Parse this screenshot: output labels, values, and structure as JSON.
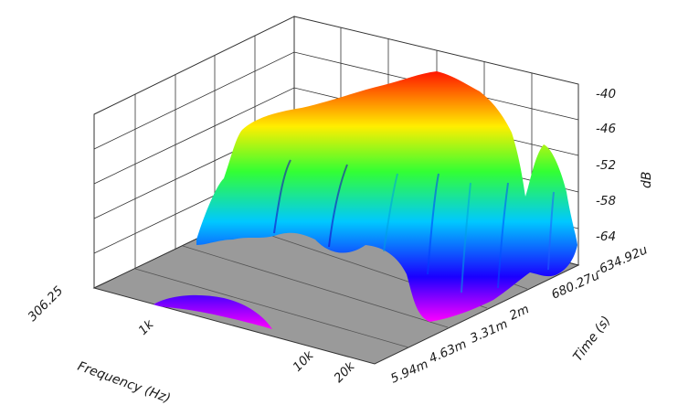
{
  "chart_data": {
    "type": "surface-3d",
    "xlabel": "Frequency (Hz)",
    "ylabel": "Time (s)",
    "zlabel": "dB",
    "x_scale": "log",
    "x_range": [
      306.25,
      20000
    ],
    "x_ticks": [
      "306.25",
      "1k",
      "10k",
      "20k"
    ],
    "y_range": [
      -0.00063492,
      0.00594
    ],
    "y_ticks": [
      "-634.92u",
      "680.27u",
      "2m",
      "3.31m",
      "4.63m",
      "5.94m"
    ],
    "z_range": [
      -70,
      -38
    ],
    "z_ticks": [
      "-40",
      "-46",
      "-52",
      "-58",
      "-64"
    ],
    "colormap": [
      "#ff00ff",
      "#0000ff",
      "#00ffff",
      "#00ff00",
      "#ffff00",
      "#ff0000"
    ],
    "floor_color": "#9a9a9a",
    "grid": true,
    "frequency_profile": {
      "freq_hz": [
        306.25,
        500,
        700,
        900,
        1000,
        1500,
        2000,
        3000,
        4000,
        5000,
        6000,
        7000,
        8000,
        9000,
        10000,
        12000,
        14000,
        16000,
        18000,
        20000
      ],
      "peak_db": [
        -70,
        -66,
        -62,
        -59,
        -56,
        -49,
        -45,
        -43,
        -42,
        -41.5,
        -40.5,
        -40,
        -39,
        -38.5,
        -40,
        -44,
        -48,
        -60,
        -50,
        -66
      ]
    }
  }
}
